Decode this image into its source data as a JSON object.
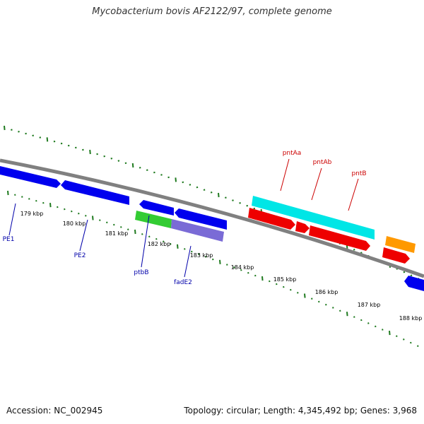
{
  "title": "Mycobacterium bovis AF2122/97, complete genome",
  "footer": {
    "accession": "Accession: NC_002945",
    "summary": "Topology: circular; Length: 4,345,492 bp; Genes: 3,968"
  },
  "colors": {
    "backbone": "#808080",
    "ticks": "#1f7a1f",
    "label_forward": "#cc0000",
    "label_reverse": "#0000aa",
    "blue": "#0000ee",
    "red": "#ee0000",
    "cyan": "#00e6e6",
    "green": "#33cc33",
    "purple": "#7a6bd6",
    "orange": "#ff9900"
  },
  "scale": {
    "labels": [
      "179 kbp",
      "180 kbp",
      "181 kbp",
      "182 kbp",
      "183 kbp",
      "184 kbp",
      "185 kbp",
      "186 kbp",
      "187 kbp",
      "188 kbp"
    ]
  },
  "gene_labels": [
    {
      "name": "pntAa",
      "strand": "forward"
    },
    {
      "name": "pntAb",
      "strand": "forward"
    },
    {
      "name": "pntB",
      "strand": "forward"
    },
    {
      "name": "PE1",
      "strand": "reverse"
    },
    {
      "name": "PE2",
      "strand": "reverse"
    },
    {
      "name": "ptbB",
      "strand": "reverse"
    },
    {
      "name": "fadE2",
      "strand": "reverse"
    }
  ],
  "features": [
    {
      "id": "blue-1",
      "color": "blue"
    },
    {
      "id": "blue-2",
      "color": "blue"
    },
    {
      "id": "blue-3",
      "color": "blue"
    },
    {
      "id": "blue-4",
      "color": "blue"
    },
    {
      "id": "blue-5",
      "color": "blue"
    },
    {
      "id": "cyan-1",
      "color": "cyan"
    },
    {
      "id": "red-1",
      "color": "red"
    },
    {
      "id": "red-2",
      "color": "red"
    },
    {
      "id": "red-3",
      "color": "red"
    },
    {
      "id": "red-4",
      "color": "red"
    },
    {
      "id": "green-1",
      "color": "green"
    },
    {
      "id": "purple-1",
      "color": "purple"
    },
    {
      "id": "orange-1",
      "color": "orange"
    }
  ]
}
